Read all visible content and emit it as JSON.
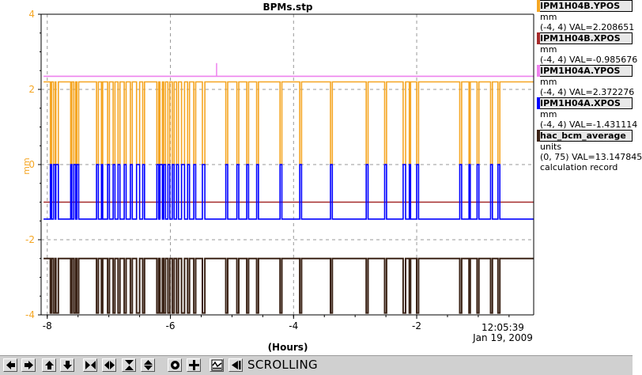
{
  "window": {
    "title": "BPMs.stp"
  },
  "chart_data": {
    "type": "line",
    "title": "BPMs.stp",
    "ylabel": "mm",
    "xlabel": "(Hours)",
    "xlim": [
      -8.1,
      -0.1
    ],
    "ylim": [
      -4,
      4
    ],
    "x_ticks": [
      "-8",
      "-6",
      "-4",
      "-2"
    ],
    "y_ticks": [
      "-4",
      "-2",
      "0",
      "2",
      "4"
    ],
    "grid": true,
    "legend_placement": "right",
    "timestamp": {
      "time": "12:05:39",
      "date": "Jan 19, 2009"
    },
    "series": [
      {
        "name": "IPM1H04B.YPOS",
        "color": "#f5a623",
        "baseline": 2.2,
        "dip_level": 0.0
      },
      {
        "name": "IPM1H04B.XPOS",
        "color": "#a52a2a",
        "baseline": -1.0,
        "dip_level": -1.0
      },
      {
        "name": "IPM1H04A.YPOS",
        "color": "#ee82ee",
        "baseline": 2.35,
        "dip_level": 2.35
      },
      {
        "name": "IPM1H04A.XPOS",
        "color": "#0000ff",
        "baseline": -1.45,
        "dip_level": 0.0
      },
      {
        "name": "hac_bcm_average",
        "color": "#3b2316",
        "baseline": -2.5,
        "dip_level": -3.95
      }
    ],
    "dips": [
      [
        -7.95,
        -7.93
      ],
      [
        -7.9,
        -7.87
      ],
      [
        -7.86,
        -7.82
      ],
      [
        -7.62,
        -7.6
      ],
      [
        -7.57,
        -7.54
      ],
      [
        -7.52,
        -7.49
      ],
      [
        -7.2,
        -7.17
      ],
      [
        -7.12,
        -7.1
      ],
      [
        -7.02,
        -6.99
      ],
      [
        -6.93,
        -6.9
      ],
      [
        -6.85,
        -6.82
      ],
      [
        -6.75,
        -6.72
      ],
      [
        -6.65,
        -6.62
      ],
      [
        -6.55,
        -6.5
      ],
      [
        -6.45,
        -6.42
      ],
      [
        -6.22,
        -6.19
      ],
      [
        -6.17,
        -6.13
      ],
      [
        -6.11,
        -6.08
      ],
      [
        -6.04,
        -6.01
      ],
      [
        -5.97,
        -5.94
      ],
      [
        -5.9,
        -5.87
      ],
      [
        -5.82,
        -5.77
      ],
      [
        -5.72,
        -5.69
      ],
      [
        -5.62,
        -5.59
      ],
      [
        -5.48,
        -5.44
      ],
      [
        -5.1,
        -5.07
      ],
      [
        -4.92,
        -4.89
      ],
      [
        -4.76,
        -4.73
      ],
      [
        -4.6,
        -4.57
      ],
      [
        -4.22,
        -4.19
      ],
      [
        -3.9,
        -3.87
      ],
      [
        -3.4,
        -3.37
      ],
      [
        -2.82,
        -2.79
      ],
      [
        -2.52,
        -2.49
      ],
      [
        -2.22,
        -2.18
      ],
      [
        -2.12,
        -2.1
      ],
      [
        -2.0,
        -1.97
      ],
      [
        -1.3,
        -1.27
      ],
      [
        -1.15,
        -1.13
      ],
      [
        -1.02,
        -0.99
      ],
      [
        -0.8,
        -0.77
      ],
      [
        -0.68,
        -0.65
      ]
    ],
    "spike": {
      "x": -5.25,
      "y": 2.7
    }
  },
  "legend": {
    "entries": [
      {
        "name": "IPM1H04B.YPOS",
        "color": "#f5a623",
        "units": "mm",
        "range_value": "(-4, 4) VAL=2.208651",
        "extra": ""
      },
      {
        "name": "IPM1H04B.XPOS",
        "color": "#a52a2a",
        "units": "mm",
        "range_value": "(-4, 4) VAL=-0.985676",
        "extra": ""
      },
      {
        "name": "IPM1H04A.YPOS",
        "color": "#ee82ee",
        "units": "mm",
        "range_value": "(-4, 4) VAL=2.372276",
        "extra": ""
      },
      {
        "name": "IPM1H04A.XPOS",
        "color": "#0000ff",
        "units": "mm",
        "range_value": "(-4, 4) VAL=-1.431114",
        "extra": ""
      },
      {
        "name": "hac_bcm_average",
        "color": "#3b2316",
        "units": "units",
        "range_value": "(0, 75) VAL=13.147845",
        "extra": "calculation record"
      }
    ]
  },
  "toolbar": {
    "buttons": [
      {
        "name": "scroll-left-button",
        "icon": "arrow-left-icon"
      },
      {
        "name": "scroll-right-button",
        "icon": "arrow-right-icon"
      },
      {
        "name": "scroll-up-button",
        "icon": "arrow-up-icon"
      },
      {
        "name": "scroll-down-button",
        "icon": "arrow-down-icon"
      },
      {
        "name": "zoom-in-x-button",
        "icon": "zoom-in-horizontal-icon"
      },
      {
        "name": "zoom-out-x-button",
        "icon": "zoom-out-horizontal-icon"
      },
      {
        "name": "zoom-in-y-button",
        "icon": "zoom-in-vertical-icon"
      },
      {
        "name": "zoom-out-y-button",
        "icon": "zoom-out-vertical-icon"
      },
      {
        "name": "autoscale-button",
        "icon": "autoscale-icon"
      },
      {
        "name": "center-button",
        "icon": "target-icon"
      },
      {
        "name": "reset-button",
        "icon": "crosshair-icon"
      },
      {
        "name": "stack-button",
        "icon": "stack-icon"
      },
      {
        "name": "play-back-button",
        "icon": "play-back-icon"
      }
    ],
    "status": "SCROLLING"
  }
}
